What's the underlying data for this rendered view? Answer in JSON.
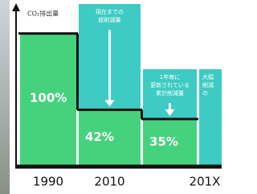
{
  "chart_data": {
    "type": "bar",
    "y_label": "CO₂排出量",
    "categories": [
      "1990",
      "2010",
      "201X"
    ],
    "values": [
      100,
      42,
      35
    ],
    "value_labels": [
      "100%",
      "42%",
      "35%"
    ],
    "color": "#46d27c",
    "annotation_color": "#3ecbc3",
    "ylim": [
      0,
      120
    ],
    "annotations": [
      {
        "lines": [
          "現在までの",
          "総削減量"
        ]
      },
      {
        "lines": [
          "1年毎に",
          "更新されている",
          "累計削減量"
        ]
      },
      {
        "lines": [
          "大幅",
          "削減",
          "の"
        ]
      }
    ]
  }
}
